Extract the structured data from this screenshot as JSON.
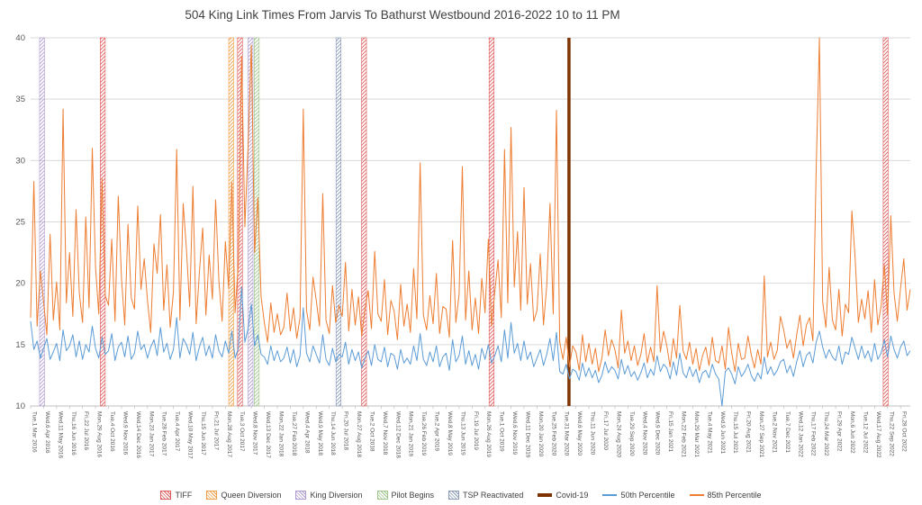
{
  "page": {
    "title": "504 King Link Times From Jarvis To Bathurst Westbound 2016-2022 10 to 11 PM"
  },
  "chart_data": {
    "type": "line",
    "title": "504 King Link Times From Jarvis To Bathurst Westbound 2016-2022 10 to 11 PM",
    "xlabel": "",
    "ylabel": "",
    "ylim": [
      10,
      40
    ],
    "yticks": [
      10,
      15,
      20,
      25,
      30,
      35,
      40
    ],
    "grid": true,
    "legend_position": "bottom",
    "x_tick_labels": [
      "Tue,1 Mar 2016",
      "Wed,6 Apr 2016",
      "Wed,11 May 2016",
      "Thu,16 Jun 2016",
      "Fri,22 Jul 2016",
      "Mon,29 Aug 2016",
      "Tue,4 Oct 2016",
      "Wed,9 Nov 2016",
      "Wed,14 Dec 2016",
      "Mon,23 Jan 2017",
      "Tue,28 Feb 2017",
      "Tue,4 Apr 2017",
      "Wed,10 May 2017",
      "Thu,15 Jun 2017",
      "Fri,21 Jul 2017",
      "Mon,28 Aug 2017",
      "Tue,3 Oct 2017",
      "Wed,8 Nov 2017",
      "Wed,13 Dec 2017",
      "Mon,22 Jan 2018",
      "Tue,27 Feb 2018",
      "Wed,4 Apr 2018",
      "Wed,9 May 2018",
      "Thu,14 Jun 2018",
      "Fri,20 Jul 2018",
      "Mon,27 Aug 2018",
      "Tue,2 Oct 2018",
      "Wed,7 Nov 2018",
      "Wed,12 Dec 2018",
      "Mon,21 Jan 2019",
      "Tue,26 Feb 2019",
      "Tue,2 Apr 2019",
      "Wed,8 May 2019",
      "Thu,13 Jun 2019",
      "Fri,19 Jul 2019",
      "Mon,26 Aug 2019",
      "Tue,1 Oct 2019",
      "Wed,6 Nov 2019",
      "Wed,11 Dec 2019",
      "Mon,20 Jan 2020",
      "Tue,25 Feb 2020",
      "Tue,31 Mar 2020",
      "Wed,6 May 2020",
      "Thu,11 Jun 2020",
      "Fri,17 Jul 2020",
      "Mon,24 Aug 2020",
      "Tue,29 Sep 2020",
      "Wed,4 Nov 2020",
      "Wed,9 Dec 2020",
      "Fri,15 Jan 2021",
      "Mon,22 Feb 2021",
      "Mon,29 Mar 2021",
      "Tue,4 May 2021",
      "Wed,9 Jun 2021",
      "Thu,15 Jul 2021",
      "Fri,20 Aug 2021",
      "Mon,27 Sep 2021",
      "Tue,2 Nov 2021",
      "Tue,7 Dec 2021",
      "Wed,12 Jan 2022",
      "Thu,17 Feb 2022",
      "Thu,24 Mar 2022",
      "Fri,29 Apr 2022",
      "Mon,6 Jun 2022",
      "Tue,12 Jul 2022",
      "Wed,17 Aug 2022",
      "Thu,22 Sep 2022",
      "Fri,28 Oct 2022"
    ],
    "series": [
      {
        "name": "50th Percentile",
        "color": "#5b9bd5",
        "values": [
          16.9,
          14.6,
          15.3,
          13.9,
          14.7,
          15.5,
          13.8,
          14.4,
          15.1,
          13.7,
          16.2,
          14.5,
          14.9,
          15.8,
          14.0,
          15.3,
          13.8,
          15.0,
          14.4,
          16.5,
          14.7,
          13.9,
          15.6,
          14.2,
          14.5,
          15.9,
          13.7,
          14.8,
          15.2,
          14.0,
          15.7,
          13.8,
          14.3,
          16.1,
          14.6,
          15.0,
          13.9,
          14.8,
          15.4,
          14.1,
          16.4,
          14.4,
          15.1,
          13.8,
          14.6,
          17.2,
          13.9,
          15.5,
          15.0,
          14.2,
          16.0,
          13.7,
          14.8,
          15.6,
          14.1,
          14.9,
          13.9,
          15.8,
          14.5,
          14.0,
          15.3,
          14.3,
          16.1,
          13.9,
          14.7,
          19.7,
          15.2,
          16.3,
          18.3,
          14.9,
          15.8,
          14.2,
          14.0,
          13.4,
          14.9,
          13.7,
          14.5,
          13.6,
          13.9,
          14.8,
          13.5,
          14.6,
          13.2,
          14.1,
          18.0,
          14.3,
          13.6,
          14.9,
          14.2,
          13.5,
          15.8,
          13.8,
          13.3,
          14.7,
          13.6,
          14.2,
          14.0,
          15.2,
          13.4,
          14.6,
          13.7,
          14.4,
          13.1,
          13.9,
          14.5,
          13.3,
          15.0,
          13.8,
          13.6,
          14.8,
          13.2,
          14.3,
          14.1,
          13.0,
          14.6,
          13.5,
          13.9,
          13.4,
          14.9,
          13.7,
          15.9,
          13.8,
          13.3,
          14.4,
          13.6,
          14.9,
          13.2,
          14.0,
          14.3,
          12.9,
          15.4,
          13.6,
          14.1,
          15.7,
          13.4,
          14.5,
          13.3,
          14.2,
          13.0,
          14.7,
          13.8,
          15.0,
          13.5,
          14.1,
          14.9,
          13.6,
          16.2,
          13.9,
          16.8,
          14.3,
          15.1,
          13.7,
          15.3,
          13.8,
          14.4,
          13.2,
          13.9,
          14.6,
          13.3,
          14.2,
          15.5,
          13.7,
          16.0,
          12.8,
          12.6,
          13.4,
          12.2,
          13.0,
          12.8,
          12.1,
          13.5,
          12.4,
          13.1,
          12.3,
          12.9,
          11.9,
          12.5,
          13.6,
          12.7,
          13.2,
          12.9,
          12.2,
          13.8,
          12.6,
          13.3,
          12.4,
          12.8,
          12.1,
          12.7,
          13.5,
          12.3,
          13.0,
          12.5,
          14.1,
          12.8,
          13.4,
          13.1,
          12.2,
          13.6,
          12.5,
          14.3,
          12.7,
          12.3,
          13.2,
          12.4,
          13.0,
          11.9,
          12.7,
          12.9,
          12.3,
          13.4,
          12.6,
          12.2,
          10.0,
          12.8,
          13.1,
          12.6,
          11.8,
          13.2,
          12.4,
          12.8,
          13.4,
          12.5,
          12.0,
          12.7,
          12.2,
          14.0,
          12.6,
          13.2,
          12.5,
          12.9,
          13.6,
          13.8,
          12.7,
          13.3,
          12.4,
          13.6,
          14.5,
          13.2,
          14.1,
          14.4,
          13.5,
          15.2,
          16.1,
          14.8,
          13.9,
          14.6,
          14.0,
          13.7,
          14.9,
          13.4,
          14.4,
          14.2,
          15.6,
          14.7,
          13.8,
          14.9,
          13.9,
          14.5,
          13.6,
          15.1,
          13.8,
          14.3,
          15.4,
          14.0,
          15.7,
          14.6,
          13.9,
          14.8,
          15.3,
          14.1,
          14.5
        ]
      },
      {
        "name": "85th Percentile",
        "color": "#ed7d31",
        "values": [
          17.2,
          28.3,
          16.5,
          21.0,
          18.5,
          15.8,
          24.0,
          17.0,
          20.1,
          16.2,
          34.2,
          18.4,
          22.5,
          17.3,
          26.0,
          19.2,
          16.8,
          25.4,
          18.0,
          31.0,
          21.3,
          17.5,
          28.5,
          19.0,
          18.2,
          23.6,
          16.9,
          27.1,
          20.4,
          16.6,
          24.8,
          18.8,
          17.9,
          26.3,
          19.5,
          22.0,
          18.6,
          16.0,
          23.2,
          20.8,
          25.6,
          17.8,
          21.5,
          16.4,
          19.3,
          30.9,
          17.0,
          26.5,
          22.8,
          18.1,
          27.9,
          16.7,
          20.9,
          24.5,
          17.4,
          22.3,
          18.7,
          26.8,
          20.2,
          16.9,
          23.4,
          19.6,
          28.2,
          17.6,
          21.7,
          38.5,
          24.6,
          31.2,
          39.4,
          22.5,
          27.0,
          18.9,
          16.8,
          15.2,
          18.4,
          16.0,
          17.5,
          15.8,
          16.4,
          19.2,
          16.1,
          18.0,
          15.5,
          17.2,
          34.2,
          17.8,
          16.2,
          20.5,
          18.6,
          16.5,
          27.3,
          17.0,
          15.9,
          19.8,
          16.8,
          18.2,
          17.3,
          21.7,
          16.1,
          19.5,
          16.6,
          18.9,
          15.7,
          17.9,
          19.4,
          16.3,
          22.6,
          17.5,
          16.9,
          20.3,
          15.8,
          18.6,
          17.7,
          15.4,
          19.9,
          16.5,
          18.3,
          16.0,
          21.2,
          17.1,
          29.8,
          17.4,
          16.2,
          19.0,
          16.7,
          20.8,
          15.9,
          18.1,
          17.9,
          15.6,
          23.5,
          16.8,
          19.1,
          29.5,
          17.0,
          21.0,
          16.2,
          18.8,
          15.9,
          20.4,
          17.6,
          23.6,
          16.5,
          19.3,
          21.9,
          17.2,
          30.9,
          18.4,
          32.7,
          19.7,
          24.2,
          17.8,
          27.8,
          18.3,
          21.6,
          16.9,
          17.8,
          22.4,
          16.6,
          19.8,
          26.5,
          17.5,
          34.1,
          15.2,
          13.8,
          15.6,
          13.2,
          14.9,
          14.4,
          12.9,
          15.8,
          13.6,
          15.1,
          13.4,
          14.7,
          12.8,
          13.9,
          16.2,
          14.1,
          15.4,
          14.6,
          13.1,
          17.8,
          14.3,
          15.3,
          13.7,
          14.9,
          13.3,
          14.2,
          15.9,
          13.5,
          14.8,
          13.6,
          19.8,
          14.4,
          16.1,
          14.9,
          13.2,
          15.5,
          13.9,
          18.2,
          14.5,
          13.8,
          15.2,
          13.4,
          14.7,
          12.9,
          14.1,
          14.8,
          13.3,
          15.6,
          13.7,
          13.5,
          14.9,
          13.0,
          16.4,
          14.3,
          12.8,
          15.1,
          13.8,
          13.9,
          15.7,
          14.2,
          13.1,
          14.6,
          13.4,
          20.6,
          14.0,
          15.2,
          13.8,
          14.5,
          17.3,
          16.2,
          14.7,
          15.4,
          13.9,
          15.8,
          17.4,
          14.9,
          16.6,
          17.2,
          15.3,
          29.2,
          40.0,
          18.5,
          16.4,
          21.3,
          17.0,
          16.2,
          19.5,
          15.7,
          18.3,
          17.6,
          25.9,
          22.1,
          16.8,
          18.7,
          17.1,
          19.4,
          16.0,
          20.3,
          16.6,
          18.1,
          21.5,
          17.4,
          25.5,
          19.2,
          16.9,
          19.6,
          22.0,
          17.8,
          19.5
        ]
      }
    ],
    "event_types": {
      "tiff": {
        "label": "TIFF",
        "color": "#e05c5c",
        "style": "hatch"
      },
      "queen": {
        "label": "Queen Diversion",
        "color": "#f0a04b",
        "style": "hatch"
      },
      "king": {
        "label": "King Diversion",
        "color": "#b09cd0",
        "style": "hatch"
      },
      "pilot": {
        "label": "Pilot Begins",
        "color": "#9fc58a",
        "style": "hatch"
      },
      "tsp": {
        "label": "TSP Reactivated",
        "color": "#8a9bb8",
        "style": "hatch"
      },
      "covid": {
        "label": "Covid-19",
        "color": "#7f3300",
        "style": "solid"
      }
    },
    "events": [
      {
        "type": "king",
        "x": 0.013
      },
      {
        "type": "tiff",
        "x": 0.082
      },
      {
        "type": "queen",
        "x": 0.228
      },
      {
        "type": "tiff",
        "x": 0.238
      },
      {
        "type": "king",
        "x": 0.25
      },
      {
        "type": "pilot",
        "x": 0.257
      },
      {
        "type": "tsp",
        "x": 0.35
      },
      {
        "type": "tiff",
        "x": 0.379
      },
      {
        "type": "tiff",
        "x": 0.524
      },
      {
        "type": "covid",
        "x": 0.612
      },
      {
        "type": "tiff",
        "x": 0.972
      }
    ]
  },
  "legend": {
    "items": [
      {
        "key": "tiff",
        "label": "TIFF",
        "style": "hatch",
        "color": "#e05c5c"
      },
      {
        "key": "queen",
        "label": "Queen Diversion",
        "style": "hatch",
        "color": "#f0a04b"
      },
      {
        "key": "king",
        "label": "King Diversion",
        "style": "hatch",
        "color": "#b09cd0"
      },
      {
        "key": "pilot",
        "label": "Pilot Begins",
        "style": "hatch",
        "color": "#9fc58a"
      },
      {
        "key": "tsp",
        "label": "TSP Reactivated",
        "style": "hatch",
        "color": "#8a9bb8"
      },
      {
        "key": "covid",
        "label": "Covid-19",
        "style": "bar",
        "color": "#7f3300"
      },
      {
        "key": "p50",
        "label": "50th Percentile",
        "style": "line",
        "color": "#5b9bd5"
      },
      {
        "key": "p85",
        "label": "85th Percentile",
        "style": "line",
        "color": "#ed7d31"
      }
    ]
  }
}
